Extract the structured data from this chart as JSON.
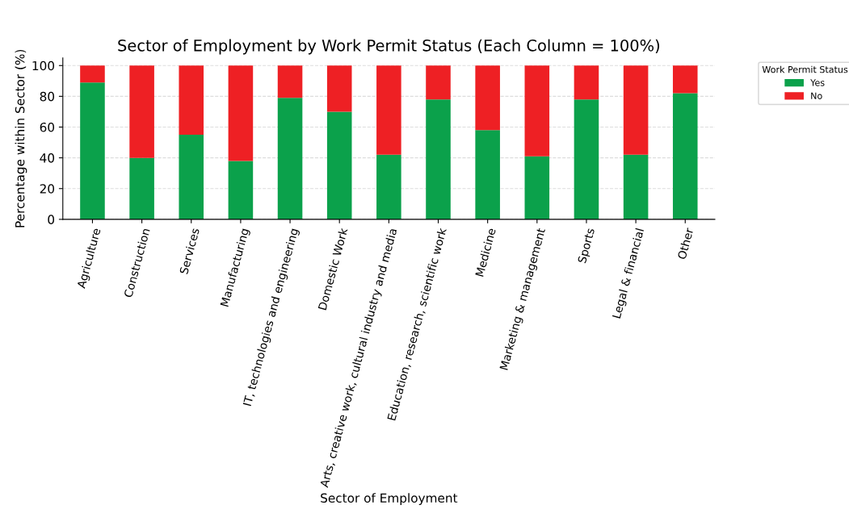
{
  "chart_data": {
    "type": "bar",
    "stacked": true,
    "title": "Sector of Employment by Work Permit Status (Each Column = 100%)",
    "xlabel": "Sector of Employment",
    "ylabel": "Percentage within Sector (%)",
    "legend_title": "Work Permit Status",
    "legend": "top right",
    "categories": [
      "Agriculture",
      "Construction",
      "Services",
      "Manufacturing",
      "IT, technologies and engineering",
      "Domestic Work",
      "Arts, creative work, cultural industry and media",
      "Education, research, scientific work",
      "Medicine",
      "Marketing & management",
      "Sports",
      "Legal & financial",
      "Other"
    ],
    "series": [
      {
        "name": "Yes",
        "color": "#0ba14b",
        "values": [
          89,
          40,
          55,
          38,
          79,
          70,
          42,
          78,
          58,
          41,
          78,
          42,
          82
        ]
      },
      {
        "name": "No",
        "color": "#ee2024",
        "values": [
          11,
          60,
          45,
          62,
          21,
          30,
          58,
          22,
          42,
          59,
          22,
          58,
          18
        ]
      }
    ],
    "ylim": [
      0,
      105
    ],
    "yticks": [
      0,
      20,
      40,
      60,
      80,
      100
    ],
    "grid": "y"
  }
}
